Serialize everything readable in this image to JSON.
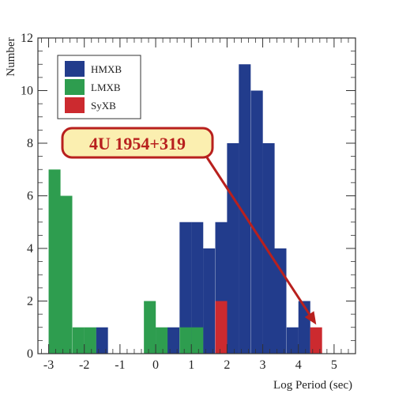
{
  "chart_data": {
    "type": "bar",
    "xlabel": "Log Period (sec)",
    "ylabel": "Number",
    "xlim": [
      -3.3,
      5.6
    ],
    "ylim": [
      0,
      12
    ],
    "xticks": [
      -3,
      -2,
      -1,
      0,
      1,
      2,
      3,
      4,
      5
    ],
    "yticks": [
      0,
      2,
      4,
      6,
      8,
      10,
      12
    ],
    "tick_labels_x": [
      "-3",
      "-2",
      "-1",
      "0",
      "1",
      "2",
      "3",
      "4",
      "5"
    ],
    "tick_labels_y": [
      "0",
      "2",
      "4",
      "6",
      "8",
      "10",
      "12"
    ],
    "bin_width": 0.333,
    "legend_position": "top-left",
    "series": [
      {
        "name": "HMXB",
        "color": "#223c8c",
        "bins": [
          {
            "x0": -1.67,
            "value": 1
          },
          {
            "x0": 0.33,
            "value": 1
          },
          {
            "x0": 0.67,
            "value": 5
          },
          {
            "x0": 1.0,
            "value": 5
          },
          {
            "x0": 1.33,
            "value": 4
          },
          {
            "x0": 1.67,
            "value": 5
          },
          {
            "x0": 2.0,
            "value": 8
          },
          {
            "x0": 2.33,
            "value": 11
          },
          {
            "x0": 2.67,
            "value": 10
          },
          {
            "x0": 3.0,
            "value": 8
          },
          {
            "x0": 3.33,
            "value": 4
          },
          {
            "x0": 3.67,
            "value": 1
          },
          {
            "x0": 4.0,
            "value": 2
          }
        ]
      },
      {
        "name": "LMXB",
        "color": "#2e9d4f",
        "bins": [
          {
            "x0": -3.0,
            "value": 7
          },
          {
            "x0": -2.67,
            "value": 6
          },
          {
            "x0": -2.33,
            "value": 1
          },
          {
            "x0": -2.0,
            "value": 1
          },
          {
            "x0": -0.33,
            "value": 2
          },
          {
            "x0": 0.0,
            "value": 1
          },
          {
            "x0": 0.67,
            "value": 1
          },
          {
            "x0": 1.0,
            "value": 1
          }
        ]
      },
      {
        "name": "SyXB",
        "color": "#cc2a2f",
        "bins": [
          {
            "x0": 1.67,
            "value": 2
          },
          {
            "x0": 4.33,
            "value": 1
          }
        ]
      }
    ],
    "annotation": {
      "text": "4U 1954+319",
      "points_to_x": 4.5,
      "points_to_y": 1.1
    }
  }
}
